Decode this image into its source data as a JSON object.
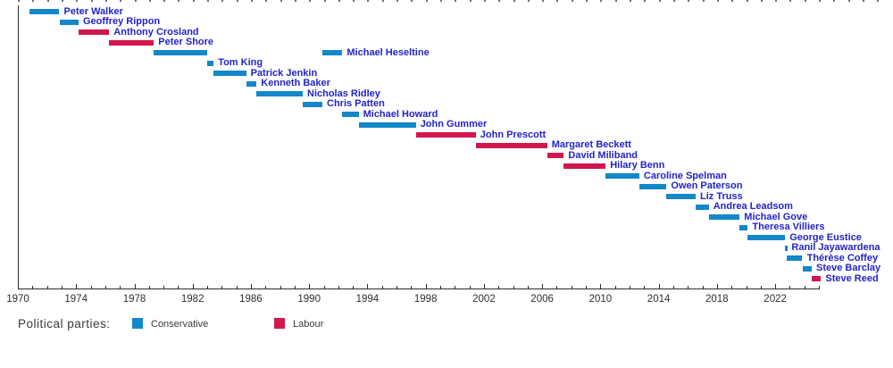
{
  "chart_data": {
    "type": "timeline-gantt",
    "title": "",
    "x_axis": {
      "min": 1970,
      "max": 2025,
      "major_tick_interval": 4,
      "minor_tick_interval": 1,
      "tick_labels": [
        "1970",
        "1974",
        "1978",
        "1982",
        "1986",
        "1990",
        "1994",
        "1998",
        "2002",
        "2006",
        "2010",
        "2014",
        "2018",
        "2022"
      ],
      "grid": false
    },
    "parties": {
      "Conservative": "#1287c9",
      "Labour": "#d2174d"
    },
    "label_color": "#2323c8",
    "people": [
      {
        "name": "Peter Walker",
        "party": "Conservative",
        "terms": [
          [
            1970.79,
            1972.85
          ]
        ]
      },
      {
        "name": "Geoffrey Rippon",
        "party": "Conservative",
        "terms": [
          [
            1972.85,
            1974.17
          ]
        ]
      },
      {
        "name": "Anthony Crosland",
        "party": "Labour",
        "terms": [
          [
            1974.17,
            1976.27
          ]
        ]
      },
      {
        "name": "Peter Shore",
        "party": "Labour",
        "terms": [
          [
            1976.27,
            1979.34
          ]
        ]
      },
      {
        "name": "Michael Heseltine",
        "party": "Conservative",
        "terms": [
          [
            1979.34,
            1983.02
          ],
          [
            1990.91,
            1992.28
          ]
        ]
      },
      {
        "name": "Tom King",
        "party": "Conservative",
        "terms": [
          [
            1983.02,
            1983.44
          ]
        ]
      },
      {
        "name": "Patrick Jenkin",
        "party": "Conservative",
        "terms": [
          [
            1983.44,
            1985.67
          ]
        ]
      },
      {
        "name": "Kenneth Baker",
        "party": "Conservative",
        "terms": [
          [
            1985.67,
            1986.39
          ]
        ]
      },
      {
        "name": "Nicholas Ridley",
        "party": "Conservative",
        "terms": [
          [
            1986.39,
            1989.56
          ]
        ]
      },
      {
        "name": "Chris Patten",
        "party": "Conservative",
        "terms": [
          [
            1989.56,
            1990.91
          ]
        ]
      },
      {
        "name": "Michael Howard",
        "party": "Conservative",
        "terms": [
          [
            1992.28,
            1993.4
          ]
        ]
      },
      {
        "name": "John Gummer",
        "party": "Conservative",
        "terms": [
          [
            1993.4,
            1997.33
          ]
        ]
      },
      {
        "name": "John Prescott",
        "party": "Labour",
        "terms": [
          [
            1997.33,
            2001.44
          ]
        ]
      },
      {
        "name": "Margaret Beckett",
        "party": "Labour",
        "terms": [
          [
            2001.44,
            2006.34
          ]
        ]
      },
      {
        "name": "David Miliband",
        "party": "Labour",
        "terms": [
          [
            2006.34,
            2007.49
          ]
        ]
      },
      {
        "name": "Hilary Benn",
        "party": "Labour",
        "terms": [
          [
            2007.49,
            2010.36
          ]
        ]
      },
      {
        "name": "Caroline Spelman",
        "party": "Conservative",
        "terms": [
          [
            2010.36,
            2012.67
          ]
        ]
      },
      {
        "name": "Owen Paterson",
        "party": "Conservative",
        "terms": [
          [
            2012.67,
            2014.54
          ]
        ]
      },
      {
        "name": "Liz Truss",
        "party": "Conservative",
        "terms": [
          [
            2014.54,
            2016.54
          ]
        ]
      },
      {
        "name": "Andrea Leadsom",
        "party": "Conservative",
        "terms": [
          [
            2016.54,
            2017.44
          ]
        ]
      },
      {
        "name": "Michael Gove",
        "party": "Conservative",
        "terms": [
          [
            2017.44,
            2019.56
          ]
        ]
      },
      {
        "name": "Theresa Villiers",
        "party": "Conservative",
        "terms": [
          [
            2019.56,
            2020.12
          ]
        ]
      },
      {
        "name": "George Eustice",
        "party": "Conservative",
        "terms": [
          [
            2020.12,
            2022.68
          ]
        ]
      },
      {
        "name": "Ranil Jayawardena",
        "party": "Conservative",
        "terms": [
          [
            2022.68,
            2022.82
          ]
        ]
      },
      {
        "name": "Thérèse Coffey",
        "party": "Conservative",
        "terms": [
          [
            2022.82,
            2023.87
          ]
        ]
      },
      {
        "name": "Steve Barclay",
        "party": "Conservative",
        "terms": [
          [
            2023.87,
            2024.51
          ]
        ]
      },
      {
        "name": "Steve Reed",
        "party": "Labour",
        "terms": [
          [
            2024.51,
            2025.15
          ]
        ]
      }
    ]
  },
  "legend": {
    "title": "Political parties:",
    "items": [
      {
        "label": "Conservative",
        "color": "#1287c9"
      },
      {
        "label": "Labour",
        "color": "#d2174d"
      }
    ]
  }
}
